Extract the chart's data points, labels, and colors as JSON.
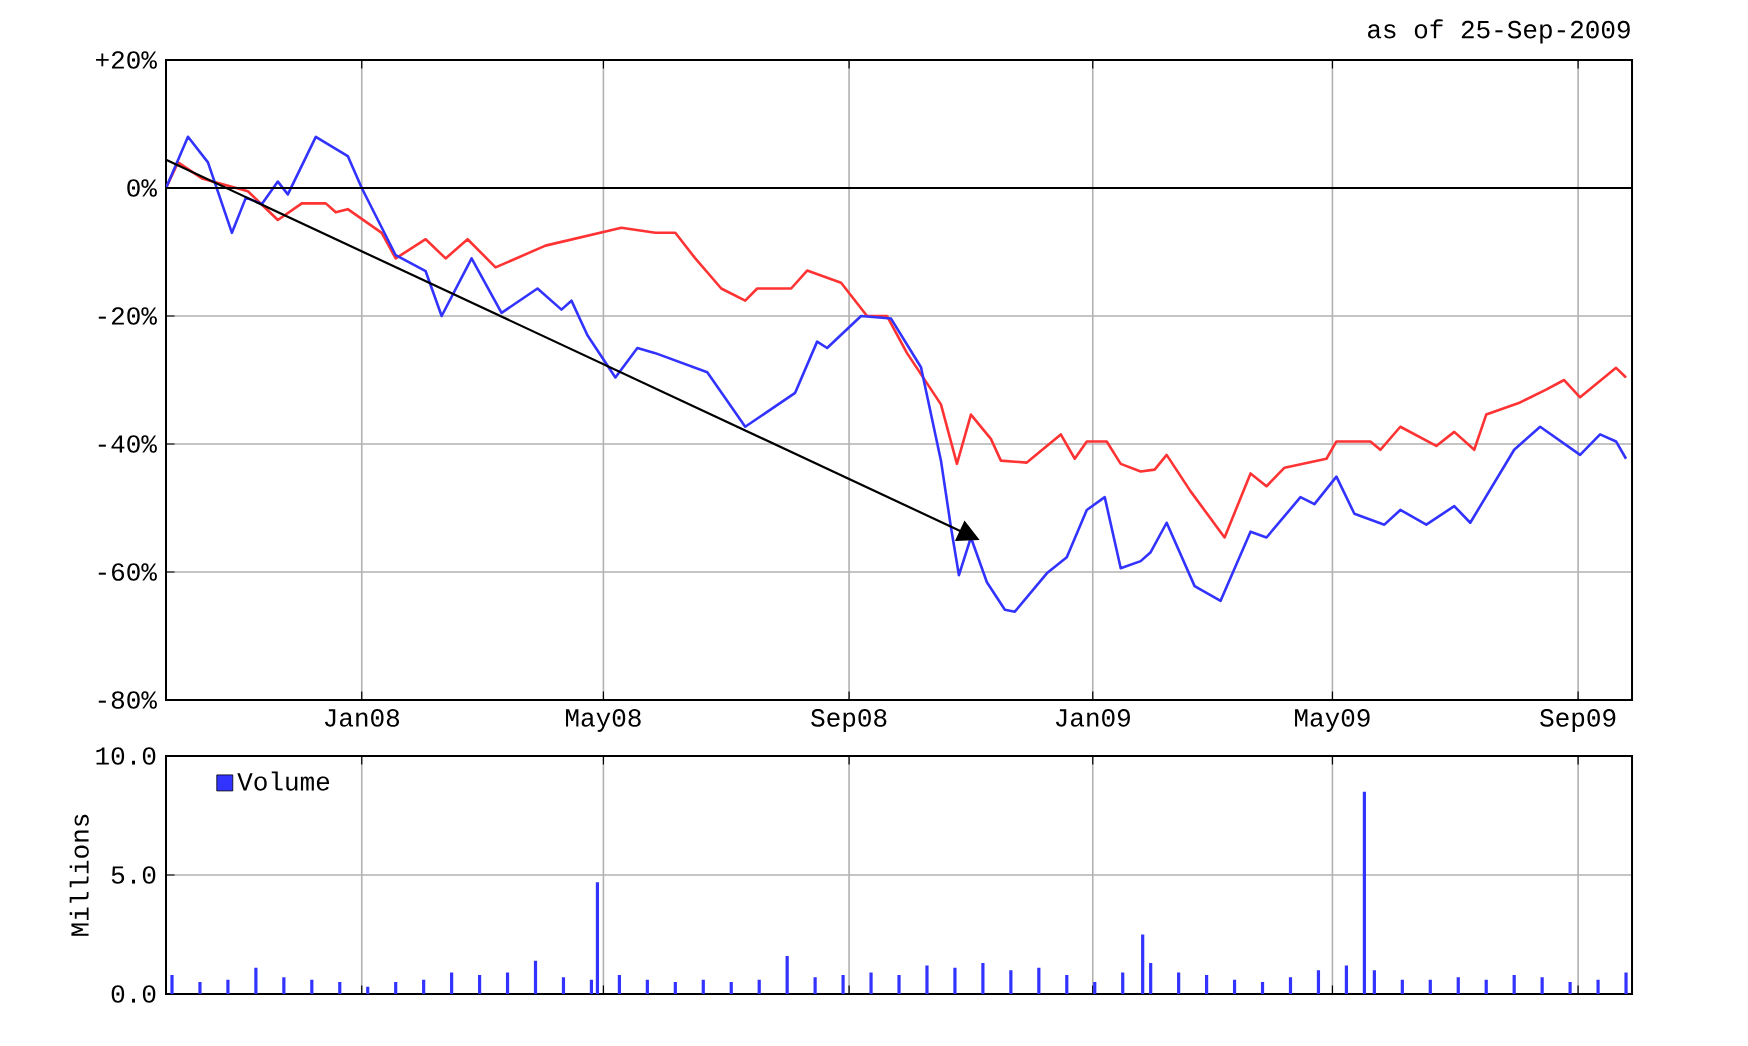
{
  "chart_data": [
    {
      "type": "line",
      "annotations": [
        "as of 25-Sep-2009"
      ],
      "series": [
        {
          "color": "#ff3333",
          "x": [
            "2007-09-25",
            "2007-10-01",
            "2007-10-13",
            "2007-11-05",
            "2007-11-20",
            "2007-12-02",
            "2007-12-14",
            "2007-12-19",
            "2007-12-25",
            "2008-01-11",
            "2008-01-18",
            "2008-02-02",
            "2008-02-12",
            "2008-02-23",
            "2008-03-08",
            "2008-04-02",
            "2008-05-10",
            "2008-05-27",
            "2008-06-06",
            "2008-06-16",
            "2008-06-29",
            "2008-07-11",
            "2008-07-17",
            "2008-08-03",
            "2008-08-11",
            "2008-08-28",
            "2008-09-10",
            "2008-09-20",
            "2008-09-30",
            "2008-10-17",
            "2008-10-25",
            "2008-11-01",
            "2008-11-11",
            "2008-11-16",
            "2008-11-29",
            "2008-12-09",
            "2008-12-16",
            "2008-12-23",
            "2008-12-29",
            "2009-01-08",
            "2009-01-15",
            "2009-01-25",
            "2009-02-01",
            "2009-02-07",
            "2009-02-19",
            "2009-03-08",
            "2009-03-21",
            "2009-03-29",
            "2009-04-07",
            "2009-04-28",
            "2009-05-03",
            "2009-05-20",
            "2009-05-25",
            "2009-06-04",
            "2009-06-22",
            "2009-07-01",
            "2009-07-11",
            "2009-07-17",
            "2009-08-03",
            "2009-08-16",
            "2009-08-25",
            "2009-09-02",
            "2009-09-20",
            "2009-09-25"
          ],
          "values": [
            0,
            4,
            1.5,
            -0.5,
            -5,
            -2.4,
            -2.4,
            -3.8,
            -3.3,
            -7,
            -11,
            -8,
            -11,
            -8,
            -12.4,
            -9,
            -6.2,
            -7,
            -7,
            -11,
            -15.7,
            -17.6,
            -15.7,
            -15.7,
            -12.9,
            -14.8,
            -20,
            -20,
            -25.8,
            -33.8,
            -43.1,
            -35.4,
            -39.2,
            -42.6,
            -42.9,
            -40.3,
            -38.5,
            -42.3,
            -39.6,
            -39.6,
            -43.1,
            -44.3,
            -44,
            -41.7,
            -47.4,
            -54.6,
            -44.6,
            -46.6,
            -43.7,
            -42.3,
            -39.6,
            -39.6,
            -40.9,
            -37.3,
            -40.3,
            -38.1,
            -40.9,
            -35.4,
            -33.5,
            -31.5,
            -30,
            -32.7,
            -28.1,
            -29.6
          ]
        },
        {
          "color": "#3333ff",
          "x": [
            "2007-09-25",
            "2007-10-06",
            "2007-10-16",
            "2007-10-28",
            "2007-11-04",
            "2007-11-12",
            "2007-11-20",
            "2007-11-25",
            "2007-12-09",
            "2007-12-25",
            "2008-01-01",
            "2008-01-18",
            "2008-02-02",
            "2008-02-10",
            "2008-02-25",
            "2008-03-11",
            "2008-03-29",
            "2008-04-10",
            "2008-04-15",
            "2008-04-23",
            "2008-05-07",
            "2008-05-18",
            "2008-05-27",
            "2008-06-22",
            "2008-07-11",
            "2008-08-05",
            "2008-08-16",
            "2008-08-21",
            "2008-09-07",
            "2008-09-22",
            "2008-10-07",
            "2008-10-17",
            "2008-10-22",
            "2008-10-26",
            "2008-11-01",
            "2008-11-09",
            "2008-11-18",
            "2008-11-23",
            "2008-12-09",
            "2008-12-19",
            "2008-12-29",
            "2009-01-07",
            "2009-01-15",
            "2009-01-25",
            "2009-01-30",
            "2009-02-07",
            "2009-02-21",
            "2009-03-06",
            "2009-03-21",
            "2009-03-29",
            "2009-04-15",
            "2009-04-22",
            "2009-05-03",
            "2009-05-12",
            "2009-05-27",
            "2009-06-04",
            "2009-06-17",
            "2009-07-01",
            "2009-07-09",
            "2009-07-31",
            "2009-08-13",
            "2009-09-02",
            "2009-09-12",
            "2009-09-20",
            "2009-09-25"
          ],
          "values": [
            0,
            8,
            4,
            -7,
            -1.5,
            -2.5,
            1,
            -1,
            8,
            5,
            0,
            -10.5,
            -13,
            -20,
            -11,
            -19.5,
            -15.7,
            -19,
            -17.6,
            -23,
            -29.6,
            -25,
            -25.8,
            -28.8,
            -37.3,
            -32,
            -24,
            -25,
            -20,
            -20.4,
            -28,
            -42.6,
            -53,
            -60.5,
            -54.6,
            -61.6,
            -65.9,
            -66.2,
            -60.2,
            -57.7,
            -50.3,
            -48.3,
            -59.4,
            -58.3,
            -56.9,
            -52.3,
            -62.2,
            -64.5,
            -53.7,
            -54.6,
            -48.3,
            -49.4,
            -45.1,
            -50.9,
            -52.6,
            -50.3,
            -52.6,
            -49.7,
            -52.3,
            -40.9,
            -37.3,
            -41.7,
            -38.5,
            -39.6,
            -42.3
          ]
        }
      ],
      "xlim": [
        "2007-09-25",
        "2009-09-28"
      ],
      "xticks": [
        {
          "value": "2008-01-01",
          "label": "Jan08"
        },
        {
          "value": "2008-05-01",
          "label": "May08"
        },
        {
          "value": "2008-09-01",
          "label": "Sep08"
        },
        {
          "value": "2009-01-01",
          "label": "Jan09"
        },
        {
          "value": "2009-05-01",
          "label": "May09"
        },
        {
          "value": "2009-09-01",
          "label": "Sep09"
        }
      ],
      "ylim": [
        -80,
        20
      ],
      "yticks": [
        {
          "value": 20,
          "label": "+20%"
        },
        {
          "value": 0,
          "label": "0%"
        },
        {
          "value": -20,
          "label": "-20%"
        },
        {
          "value": -40,
          "label": "-40%"
        },
        {
          "value": -60,
          "label": "-60%"
        },
        {
          "value": -80,
          "label": "-80%"
        }
      ],
      "grid": true,
      "ref_lines": [
        {
          "axis": "y",
          "value": 0,
          "color": "#000000"
        }
      ]
    },
    {
      "type": "bar",
      "ylabel": "Millions",
      "legend": "top left",
      "tick_labels": "y",
      "grid": true,
      "series": [
        {
          "name": "Volume",
          "color": "#3333ff",
          "x": [
            "2007-09-28",
            "2007-10-12",
            "2007-10-26",
            "2007-11-09",
            "2007-11-23",
            "2007-12-07",
            "2007-12-21",
            "2008-01-04",
            "2008-01-18",
            "2008-02-01",
            "2008-02-15",
            "2008-02-29",
            "2008-03-14",
            "2008-03-28",
            "2008-04-11",
            "2008-04-25",
            "2008-04-28",
            "2008-05-09",
            "2008-05-23",
            "2008-06-06",
            "2008-06-20",
            "2008-07-04",
            "2008-07-18",
            "2008-08-01",
            "2008-08-15",
            "2008-08-29",
            "2008-09-12",
            "2008-09-26",
            "2008-10-10",
            "2008-10-24",
            "2008-11-07",
            "2008-11-21",
            "2008-12-05",
            "2008-12-19",
            "2009-01-02",
            "2009-01-16",
            "2009-01-26",
            "2009-01-30",
            "2009-02-13",
            "2009-02-27",
            "2009-03-13",
            "2009-03-27",
            "2009-04-10",
            "2009-04-24",
            "2009-05-08",
            "2009-05-17",
            "2009-05-22",
            "2009-06-05",
            "2009-06-19",
            "2009-07-03",
            "2009-07-17",
            "2009-07-31",
            "2009-08-14",
            "2009-08-28",
            "2009-09-11",
            "2009-09-25"
          ],
          "values": [
            0.8,
            0.5,
            0.6,
            1.1,
            0.7,
            0.6,
            0.5,
            0.3,
            0.5,
            0.6,
            0.9,
            0.8,
            0.9,
            1.4,
            0.7,
            0.6,
            4.7,
            0.8,
            0.6,
            0.5,
            0.6,
            0.5,
            0.6,
            1.6,
            0.7,
            0.8,
            0.9,
            0.8,
            1.2,
            1.1,
            1.3,
            1.0,
            1.1,
            0.8,
            0.5,
            0.9,
            2.5,
            1.3,
            0.9,
            0.8,
            0.6,
            0.5,
            0.7,
            1.0,
            1.2,
            8.5,
            1.0,
            0.6,
            0.6,
            0.7,
            0.6,
            0.8,
            0.7,
            0.5,
            0.6,
            0.9
          ]
        }
      ],
      "xlim": [
        "2007-09-25",
        "2009-09-28"
      ],
      "xticks": [
        {
          "value": "2008-01-01",
          "label": null
        },
        {
          "value": "2008-05-01",
          "label": null
        },
        {
          "value": "2008-09-01",
          "label": null
        },
        {
          "value": "2009-01-01",
          "label": null
        },
        {
          "value": "2009-05-01",
          "label": null
        },
        {
          "value": "2009-09-01",
          "label": null
        }
      ],
      "ylim": [
        0,
        10
      ],
      "yticks": [
        {
          "value": 0,
          "label": "0.0"
        },
        {
          "value": 5,
          "label": "5.0"
        },
        {
          "value": 10,
          "label": "10.0"
        }
      ]
    }
  ]
}
